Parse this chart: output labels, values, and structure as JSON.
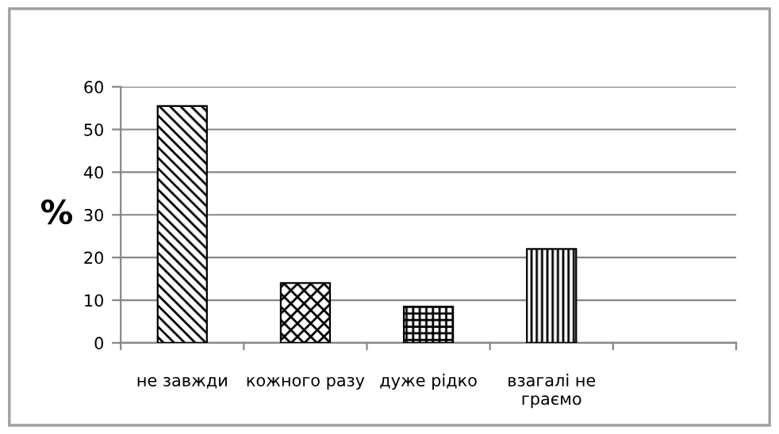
{
  "chart_data": {
    "type": "bar",
    "ylabel": "%",
    "categories": [
      "не завжди",
      "кожного разу",
      "дуже рідко",
      "взагалі не\nграємо",
      null
    ],
    "values": [
      55.5,
      14,
      8.5,
      22,
      null
    ],
    "color": "#000000",
    "ylim": [
      0,
      60
    ],
    "yticks": [
      0,
      10,
      20,
      30,
      40,
      50,
      60
    ],
    "grid": "y"
  }
}
